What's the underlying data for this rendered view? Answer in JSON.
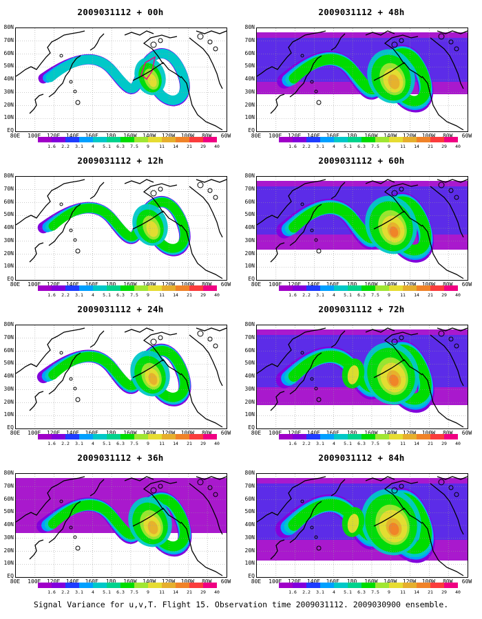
{
  "colorbar": {
    "colors": [
      "#a000c8",
      "#8200dc",
      "#1e3cff",
      "#00a0ff",
      "#00c8c8",
      "#00d28c",
      "#00dc00",
      "#a0e632",
      "#e6dc32",
      "#e6af2d",
      "#f08228",
      "#fa3c3c",
      "#f00082"
    ],
    "levels": [
      "1.6",
      "2.2",
      "3.1",
      "4",
      "5.1",
      "6.3",
      "7.5",
      "9",
      "11",
      "14",
      "21",
      "29",
      "40"
    ]
  },
  "axes": {
    "lat_labels": [
      "80N",
      "70N",
      "60N",
      "50N",
      "40N",
      "30N",
      "20N",
      "10N",
      "EQ"
    ],
    "lon_labels": [
      "80E",
      "100E",
      "120E",
      "140E",
      "160E",
      "180",
      "160W",
      "140W",
      "120W",
      "100W",
      "80W",
      "60W"
    ]
  },
  "panels": [
    {
      "id": "p00",
      "title": "2009031112 + 00h",
      "intensity": 0
    },
    {
      "id": "p48",
      "title": "2009031112 + 48h",
      "intensity": 4
    },
    {
      "id": "p12",
      "title": "2009031112 + 12h",
      "intensity": 1
    },
    {
      "id": "p60",
      "title": "2009031112 + 60h",
      "intensity": 5
    },
    {
      "id": "p24",
      "title": "2009031112 + 24h",
      "intensity": 2
    },
    {
      "id": "p72",
      "title": "2009031112 + 72h",
      "intensity": 6
    },
    {
      "id": "p36",
      "title": "2009031112 + 36h",
      "intensity": 3
    },
    {
      "id": "p84",
      "title": "2009031112 + 84h",
      "intensity": 7
    }
  ],
  "caption": "Signal Variance for u,v,T. Flight 15. Observation time 2009031112. 2009030900 ensemble."
}
